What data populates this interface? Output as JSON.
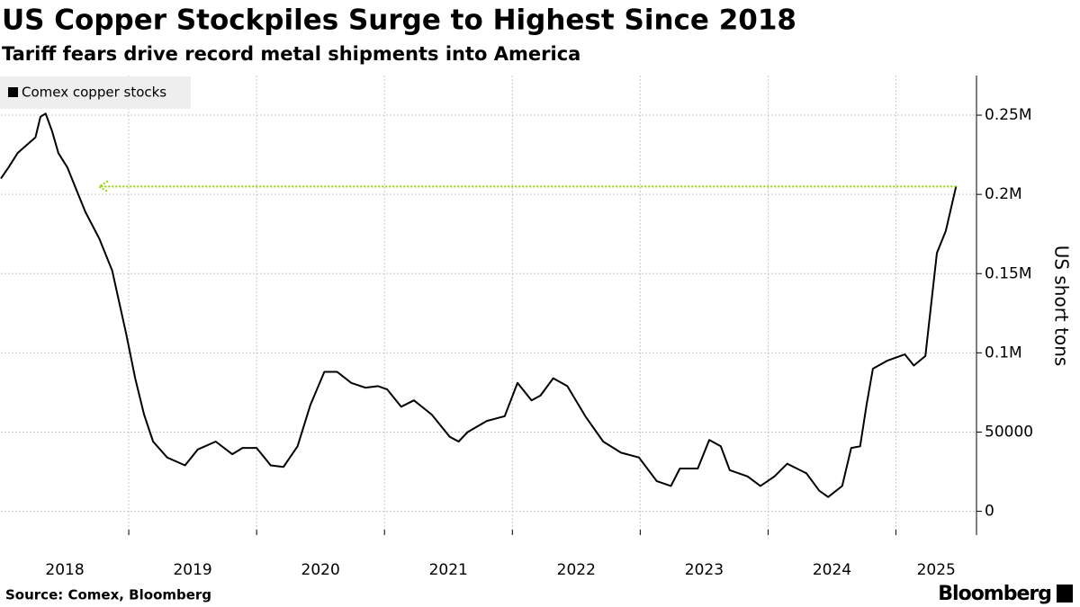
{
  "chart_data": {
    "type": "line",
    "title": "US Copper Stockpiles Surge to Highest Since 2018",
    "subtitle": "Tariff fears drive record metal shipments into America",
    "source": "Source: Comex, Bloomberg",
    "brand": "Bloomberg",
    "y_label": "US short tons",
    "x": [
      2018.0,
      2018.06,
      2018.13,
      2018.2,
      2018.27,
      2018.31,
      2018.35,
      2018.4,
      2018.45,
      2018.52,
      2018.59,
      2018.66,
      2018.77,
      2018.87,
      2018.98,
      2019.05,
      2019.12,
      2019.19,
      2019.3,
      2019.44,
      2019.54,
      2019.68,
      2019.81,
      2019.89,
      2020.0,
      2020.11,
      2020.21,
      2020.32,
      2020.42,
      2020.53,
      2020.63,
      2020.74,
      2020.85,
      2020.95,
      2021.02,
      2021.13,
      2021.23,
      2021.37,
      2021.51,
      2021.58,
      2021.65,
      2021.8,
      2021.94,
      2022.04,
      2022.15,
      2022.22,
      2022.32,
      2022.43,
      2022.57,
      2022.71,
      2022.85,
      2022.99,
      2023.13,
      2023.24,
      2023.31,
      2023.45,
      2023.54,
      2023.63,
      2023.7,
      2023.84,
      2023.94,
      2024.05,
      2024.15,
      2024.3,
      2024.4,
      2024.47,
      2024.58,
      2024.65,
      2024.72,
      2024.77,
      2024.82,
      2024.93,
      2025.07,
      2025.14,
      2025.23,
      2025.32,
      2025.39,
      2025.47
    ],
    "series": [
      {
        "name": "Comex copper stocks",
        "color": "#000000",
        "values": [
          210000,
          217000,
          226000,
          231000,
          236000,
          249000,
          251000,
          240000,
          226000,
          217000,
          203000,
          189000,
          172000,
          152000,
          112000,
          84000,
          61000,
          44000,
          34000,
          29000,
          39000,
          44000,
          36000,
          40000,
          40000,
          29000,
          28000,
          41000,
          67000,
          88000,
          88000,
          81000,
          78000,
          79000,
          77000,
          66000,
          70000,
          61000,
          47000,
          44000,
          50000,
          57000,
          60000,
          81000,
          70000,
          73000,
          84000,
          79000,
          60000,
          44000,
          37000,
          34000,
          19000,
          16000,
          27000,
          27000,
          45000,
          41000,
          26000,
          22000,
          16000,
          22000,
          30000,
          24000,
          13000,
          9000,
          16000,
          40000,
          41000,
          67000,
          90000,
          95000,
          99000,
          92000,
          98000,
          163000,
          177000,
          205000
        ]
      }
    ],
    "xlim": [
      2018,
      2025.63
    ],
    "xticks": [
      {
        "value": 2018,
        "label": "2018"
      },
      {
        "value": 2019,
        "label": "2019"
      },
      {
        "value": 2020,
        "label": "2020"
      },
      {
        "value": 2021,
        "label": "2021"
      },
      {
        "value": 2022,
        "label": "2022"
      },
      {
        "value": 2023,
        "label": "2023"
      },
      {
        "value": 2024,
        "label": "2024"
      },
      {
        "value": 2025,
        "label": "2025"
      }
    ],
    "ylim": [
      -15000,
      275000
    ],
    "yticks": [
      {
        "value": 0,
        "label": "0"
      },
      {
        "value": 50000,
        "label": "50000"
      },
      {
        "value": 100000,
        "label": "0.1M"
      },
      {
        "value": 150000,
        "label": "0.15M"
      },
      {
        "value": 200000,
        "label": "0.2M"
      },
      {
        "value": 250000,
        "label": "0.25M"
      }
    ],
    "grid": true,
    "y_axis_side": "right"
  }
}
